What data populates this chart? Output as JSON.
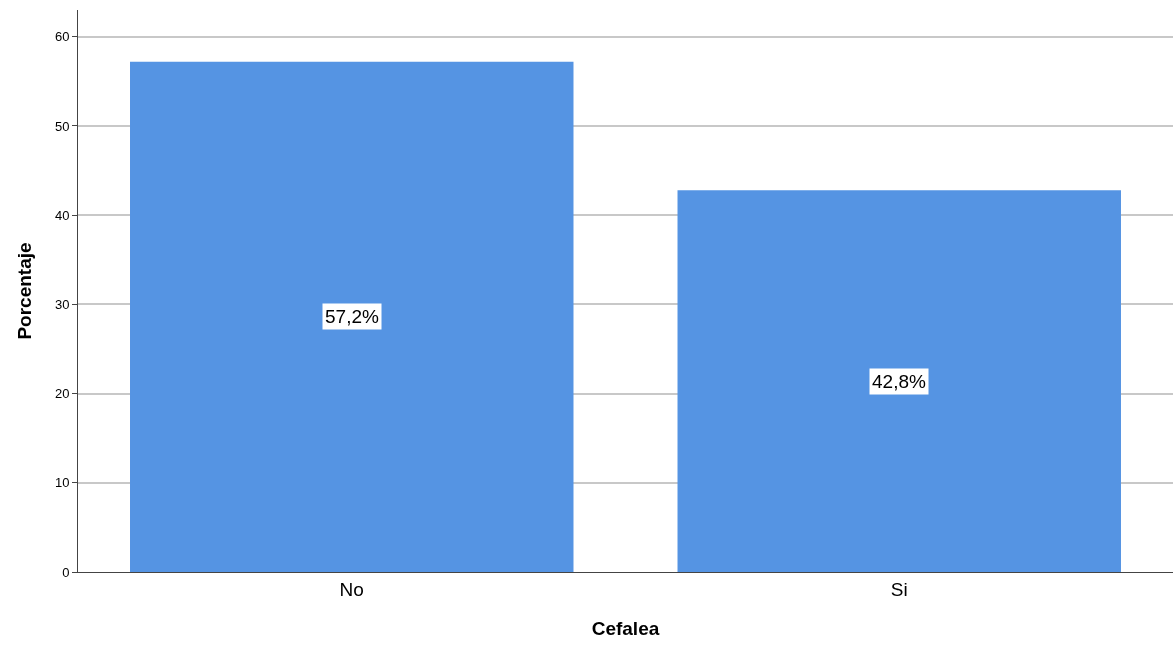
{
  "chart_data": {
    "type": "bar",
    "xlabel": "Cefalea",
    "ylabel": "Porcentaje",
    "categories": [
      "No",
      "Si"
    ],
    "values": [
      57.2,
      42.8
    ],
    "value_labels": [
      "57,2%",
      "42,8%"
    ],
    "color": "#5594e3",
    "ylim": [
      0,
      63
    ],
    "yticks": [
      0,
      10,
      20,
      30,
      40,
      50,
      60
    ],
    "grid": "y",
    "legend": false
  }
}
